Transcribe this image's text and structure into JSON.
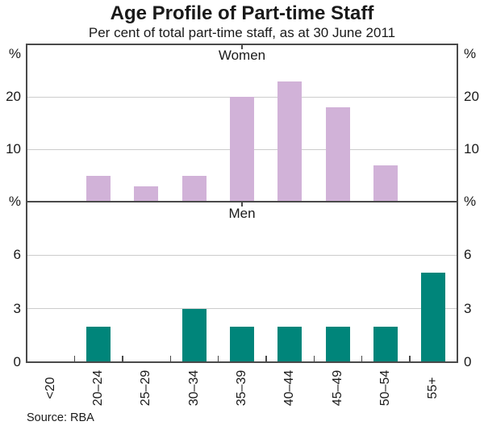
{
  "chart_data": {
    "type": "bar",
    "title": "Age Profile of Part-time Staff",
    "subtitle": "Per cent of total part-time staff, as at 30 June 2011",
    "source": "Source: RBA",
    "unit_symbol": "%",
    "legend": "none",
    "grid": true,
    "categories": [
      "<20",
      "20–24",
      "25–29",
      "30–34",
      "35–39",
      "40–44",
      "45–49",
      "50–54",
      "55+"
    ],
    "panels": [
      {
        "label": "Women",
        "series": [
          {
            "name": "Women",
            "values": [
              0,
              5,
              3,
              5,
              20,
              23,
              18,
              7,
              0
            ]
          }
        ],
        "ylim": [
          0,
          30
        ],
        "yticks": [
          10,
          20
        ],
        "bar_color": "#d1b2d8",
        "axis_labels": [
          {
            "text": "%",
            "top": true
          },
          {
            "text": "20",
            "value": 20
          },
          {
            "text": "10",
            "value": 10
          }
        ]
      },
      {
        "label": "Men",
        "series": [
          {
            "name": "Men",
            "values": [
              0,
              2,
              0,
              3,
              2,
              2,
              2,
              2,
              5
            ]
          }
        ],
        "ylim": [
          0,
          9
        ],
        "yticks": [
          3,
          6
        ],
        "bar_color": "#00857a",
        "axis_labels": [
          {
            "text": "%",
            "top": true
          },
          {
            "text": "6",
            "value": 6
          },
          {
            "text": "3",
            "value": 3
          },
          {
            "text": "0",
            "value": 0
          }
        ]
      }
    ]
  },
  "colors": {
    "frame": "#4a4a4a",
    "gridline": "#cccccc",
    "text": "#1a1a1a",
    "women_bar": "#d1b2d8",
    "men_bar": "#00857a",
    "background": "#ffffff"
  }
}
